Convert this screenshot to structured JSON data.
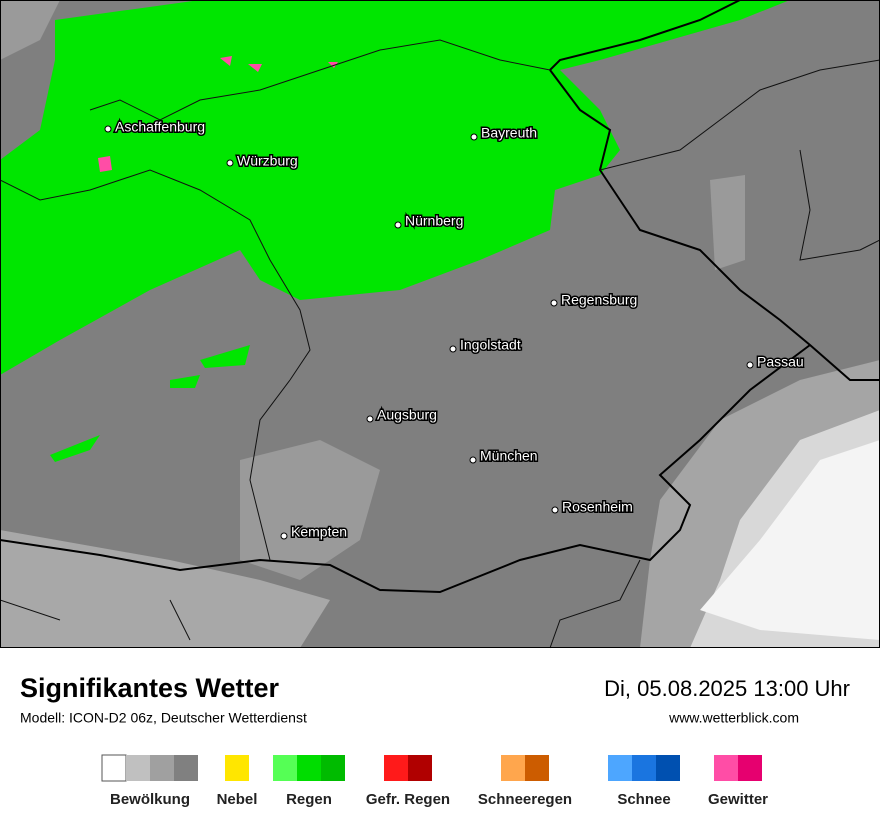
{
  "map": {
    "cities": [
      "Aschaffenburg",
      "Würzburg",
      "Bayreuth",
      "Nürnberg",
      "Regensburg",
      "Ingolstadt",
      "Passau",
      "Augsburg",
      "München",
      "Rosenheim",
      "Kempten"
    ]
  },
  "footer": {
    "title": "Signifikantes Wetter",
    "subtitle": "Modell: ICON-D2 06z, Deutscher Wetterdienst",
    "datetime": "Di, 05.08.2025 13:00 Uhr",
    "website": "www.wetterblick.com"
  },
  "legend": [
    {
      "label": "Bewölkung",
      "colors": [
        "#ffffff",
        "#c0c0c0",
        "#a0a0a0",
        "#808080"
      ]
    },
    {
      "label": "Nebel",
      "colors": [
        "#ffe600"
      ]
    },
    {
      "label": "Regen",
      "colors": [
        "#55ff55",
        "#00dd00",
        "#00bb00"
      ]
    },
    {
      "label": "Gefr. Regen",
      "colors": [
        "#ff1a1a",
        "#b00000"
      ]
    },
    {
      "label": "Schneeregen",
      "colors": [
        "#ffa64d",
        "#cc5c00"
      ]
    },
    {
      "label": "Schnee",
      "colors": [
        "#4da6ff",
        "#1a75e0",
        "#0050b0"
      ]
    },
    {
      "label": "Gewitter",
      "colors": [
        "#ff4da6",
        "#e6006f"
      ]
    }
  ]
}
